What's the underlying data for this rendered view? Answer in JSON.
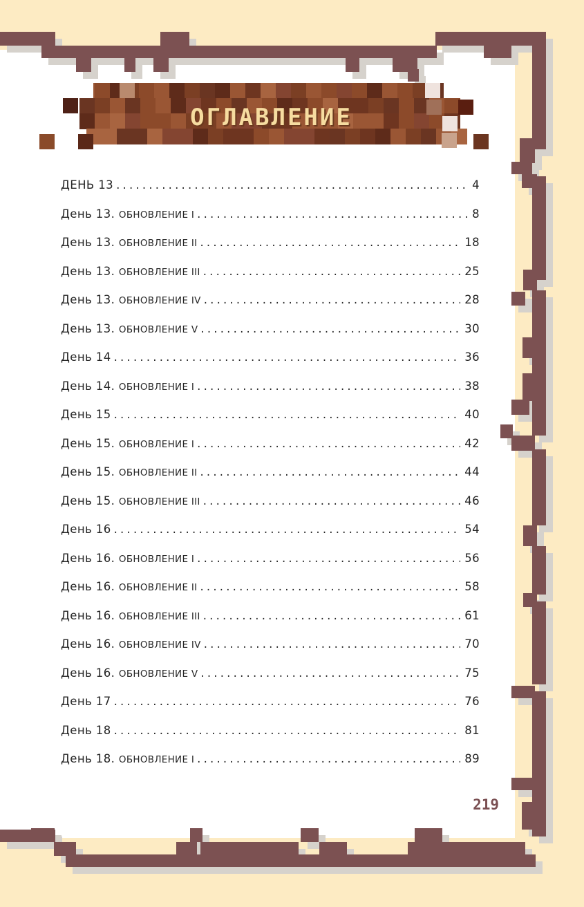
{
  "title": "ОГЛАВЛЕНИЕ",
  "page_number": "219",
  "colors": {
    "background": "#fdebc3",
    "frame": "#7c5152",
    "frame_shadow": "#d6d2cc",
    "paper": "#ffffff",
    "title_text": "#f6dca0",
    "text": "#262626"
  },
  "toc": [
    {
      "main": "ДЕНЬ 13",
      "sub": "",
      "page": "4"
    },
    {
      "main": "День 13. ",
      "sub": "ОБНОВЛЕНИЕ I",
      "page": "8"
    },
    {
      "main": "День 13. ",
      "sub": "ОБНОВЛЕНИЕ II",
      "page": "18"
    },
    {
      "main": "День 13. ",
      "sub": "ОБНОВЛЕНИЕ III",
      "page": "25"
    },
    {
      "main": "День 13. ",
      "sub": "ОБНОВЛЕНИЕ IV",
      "page": "28"
    },
    {
      "main": "День 13. ",
      "sub": "ОБНОВЛЕНИЕ V",
      "page": "30"
    },
    {
      "main": "День 14",
      "sub": "",
      "page": "36"
    },
    {
      "main": "День 14. ",
      "sub": "ОБНОВЛЕНИЕ I",
      "page": "38"
    },
    {
      "main": "День 15",
      "sub": "",
      "page": "40"
    },
    {
      "main": "День 15. ",
      "sub": "ОБНОВЛЕНИЕ I",
      "page": "42"
    },
    {
      "main": "День 15. ",
      "sub": "ОБНОВЛЕНИЕ II",
      "page": "44"
    },
    {
      "main": "День 15. ",
      "sub": "ОБНОВЛЕНИЕ III",
      "page": "46"
    },
    {
      "main": "День 16",
      "sub": "",
      "page": "54"
    },
    {
      "main": "День 16. ",
      "sub": "ОБНОВЛЕНИЕ I",
      "page": "56"
    },
    {
      "main": "День 16. ",
      "sub": "ОБНОВЛЕНИЕ II",
      "page": "58"
    },
    {
      "main": "День 16. ",
      "sub": "ОБНОВЛЕНИЕ III",
      "page": "61"
    },
    {
      "main": "День 16. ",
      "sub": "ОБНОВЛЕНИЕ IV",
      "page": "70"
    },
    {
      "main": "День 16. ",
      "sub": "ОБНОВЛЕНИЕ V",
      "page": "75"
    },
    {
      "main": "День 17",
      "sub": "",
      "page": "76"
    },
    {
      "main": "День 18",
      "sub": "",
      "page": "81"
    },
    {
      "main": "День 18. ",
      "sub": "ОБНОВЛЕНИЕ I",
      "page": "89"
    }
  ]
}
